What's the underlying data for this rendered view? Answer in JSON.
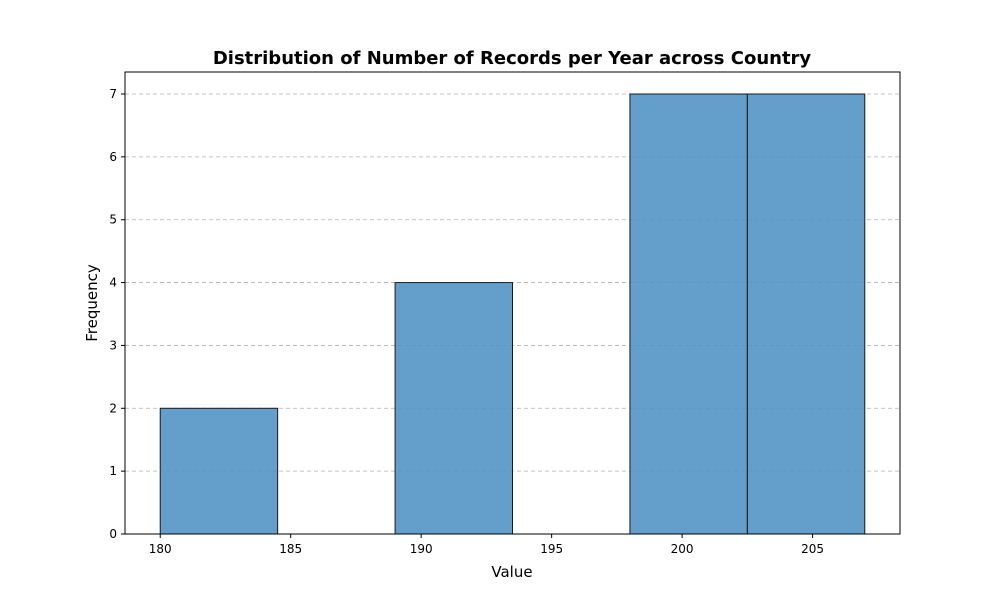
{
  "chart_data": {
    "type": "bar",
    "title": "Distribution of Number of Records per Year across Country",
    "xlabel": "Value",
    "ylabel": "Frequency",
    "bins": [
      {
        "start": 180.0,
        "end": 184.5,
        "value": 2
      },
      {
        "start": 184.5,
        "end": 189.0,
        "value": 0
      },
      {
        "start": 189.0,
        "end": 193.5,
        "value": 4
      },
      {
        "start": 193.5,
        "end": 198.0,
        "value": 0
      },
      {
        "start": 198.0,
        "end": 202.5,
        "value": 7
      },
      {
        "start": 202.5,
        "end": 207.0,
        "value": 7
      }
    ],
    "xlim": [
      178.65,
      208.35
    ],
    "ylim": [
      0,
      7.35
    ],
    "x_ticks": [
      180,
      185,
      190,
      195,
      200,
      205
    ],
    "y_ticks": [
      0,
      1,
      2,
      3,
      4,
      5,
      6,
      7
    ],
    "grid": {
      "axis": "y",
      "style": "dashed"
    },
    "colors": {
      "bar_fill": "#4f91c3",
      "bar_edge": "#1a1a1a",
      "grid": "#b0b0b0",
      "axes": "#000000"
    }
  }
}
